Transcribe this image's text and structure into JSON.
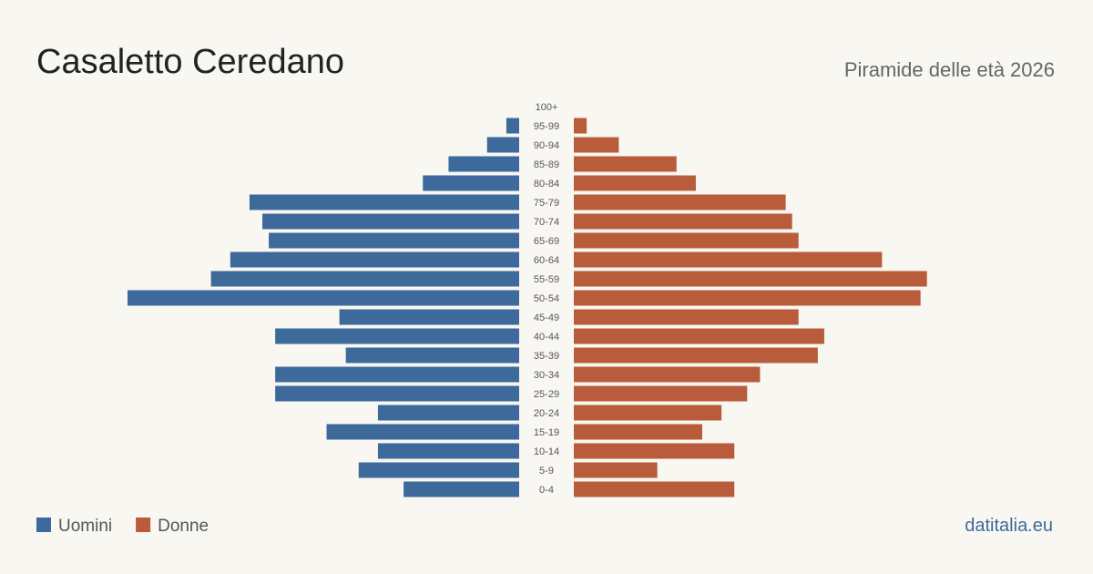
{
  "chart_data": {
    "type": "pyramid",
    "title": "Casaletto Ceredano",
    "subtitle": "Piramide delle età 2026",
    "source": "datitalia.eu",
    "categories": [
      "100+",
      "95-99",
      "90-94",
      "85-89",
      "80-84",
      "75-79",
      "70-74",
      "65-69",
      "60-64",
      "55-59",
      "50-54",
      "45-49",
      "40-44",
      "35-39",
      "30-34",
      "25-29",
      "20-24",
      "15-19",
      "10-14",
      "5-9",
      "0-4"
    ],
    "series": [
      {
        "name": "Uomini",
        "color": "#3d6a9a",
        "values": [
          0,
          2,
          5,
          11,
          15,
          42,
          40,
          39,
          45,
          48,
          61,
          28,
          38,
          27,
          38,
          38,
          22,
          30,
          22,
          25,
          18
        ]
      },
      {
        "name": "Donne",
        "color": "#b95c3c",
        "values": [
          0,
          2,
          7,
          16,
          19,
          33,
          34,
          35,
          48,
          55,
          54,
          35,
          39,
          38,
          29,
          27,
          23,
          20,
          25,
          13,
          25
        ]
      }
    ]
  }
}
